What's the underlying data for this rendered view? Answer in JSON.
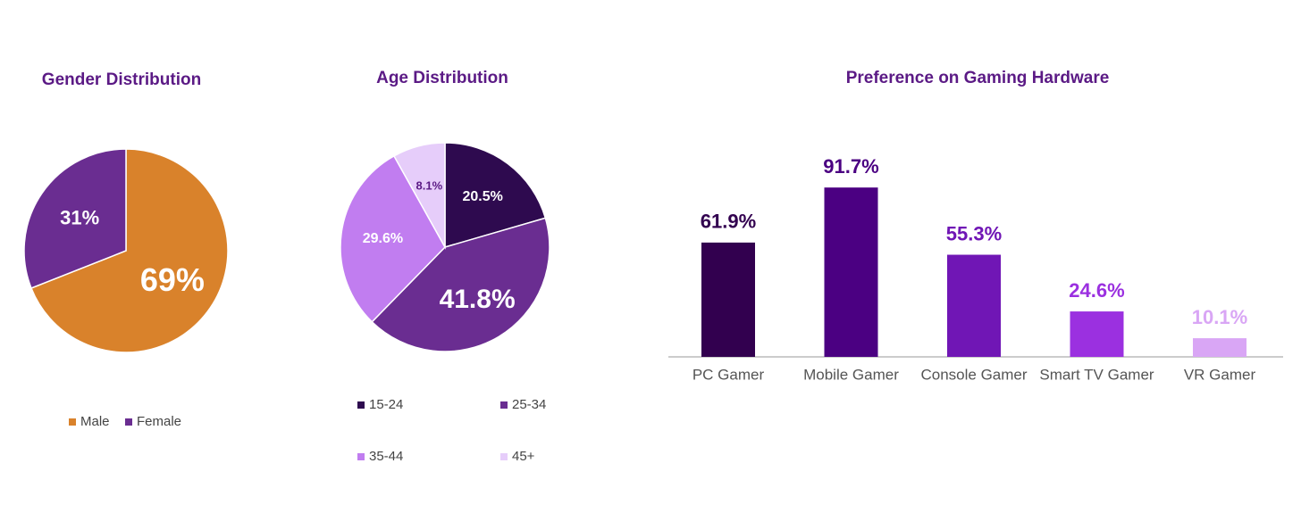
{
  "chart_data": [
    {
      "type": "pie",
      "title": "Gender Distribution",
      "categories": [
        "Male",
        "Female"
      ],
      "values": [
        69,
        31
      ],
      "value_labels": [
        "69%",
        "31%"
      ],
      "colors": [
        "#d9822b",
        "#6a2d91"
      ]
    },
    {
      "type": "pie",
      "title": "Age Distribution",
      "categories": [
        "15-24",
        "25-34",
        "35-44",
        "45+"
      ],
      "values": [
        20.5,
        41.8,
        29.6,
        8.1
      ],
      "value_labels": [
        "20.5%",
        "41.8%",
        "29.6%",
        "8.1%"
      ],
      "colors": [
        "#2e0a4f",
        "#6a2d91",
        "#c17df0",
        "#e6cdfa"
      ]
    },
    {
      "type": "bar",
      "title": "Preference on Gaming Hardware",
      "categories": [
        "PC Gamer",
        "Mobile Gamer",
        "Console Gamer",
        "Smart TV Gamer",
        "VR Gamer"
      ],
      "values": [
        61.9,
        91.7,
        55.3,
        24.6,
        10.1
      ],
      "value_labels": [
        "61.9%",
        "91.7%",
        "55.3%",
        "24.6%",
        "10.1%"
      ],
      "colors": [
        "#32004f",
        "#4b0082",
        "#7016b5",
        "#9b30e0",
        "#d9a6f5"
      ]
    }
  ]
}
